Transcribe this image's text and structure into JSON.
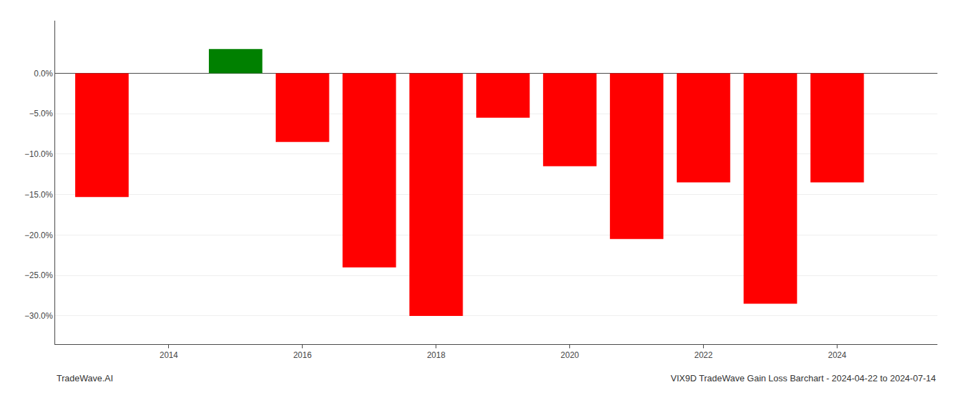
{
  "chart_data": {
    "type": "bar",
    "title": "VIX9D TradeWave Gain Loss Barchart - 2024-04-22 to 2024-07-14",
    "annotations": [
      "TradeWave.AI"
    ],
    "x": [
      2013,
      2015,
      2016,
      2017,
      2018,
      2019,
      2020,
      2021,
      2022,
      2023,
      2024
    ],
    "values": [
      -0.153,
      0.03,
      -0.085,
      -0.24,
      -0.3,
      -0.055,
      -0.115,
      -0.205,
      -0.135,
      -0.285,
      -0.135
    ],
    "colors": [
      "#ff0000",
      "#008000",
      "#ff0000",
      "#ff0000",
      "#ff0000",
      "#ff0000",
      "#ff0000",
      "#ff0000",
      "#ff0000",
      "#ff0000",
      "#ff0000"
    ],
    "xlim": [
      2012.3,
      2025.5
    ],
    "xticks": [
      2014,
      2016,
      2018,
      2020,
      2022,
      2024
    ],
    "ylim": [
      -0.335,
      0.065
    ],
    "yticks": [
      {
        "value": 0.0,
        "label": "0.0%"
      },
      {
        "value": -0.05,
        "label": "−5.0%"
      },
      {
        "value": -0.1,
        "label": "−10.0%"
      },
      {
        "value": -0.15,
        "label": "−15.0%"
      },
      {
        "value": -0.2,
        "label": "−20.0%"
      },
      {
        "value": -0.25,
        "label": "−25.0%"
      },
      {
        "value": -0.3,
        "label": "−30.0%"
      }
    ],
    "grid": true
  }
}
